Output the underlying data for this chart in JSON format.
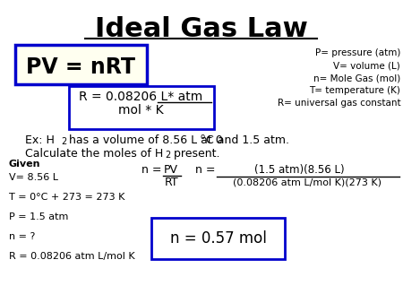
{
  "title": "Ideal Gas Law",
  "bg_color": "#ffffff",
  "pv_eq": "PV = nRT",
  "r_eq_top": "R = 0.08206 L* atm",
  "r_eq_bot": "mol * K",
  "def1": "P= pressure (atm)",
  "def2": "V= volume (L)",
  "def3": "n= Mole Gas (mol)",
  "def4": "T= temperature (K)",
  "def5": "R= universal gas constant",
  "ex1a": "Ex: H",
  "ex1b": " has a volume of 8.56 L at 0",
  "ex1c": "C and 1.5 atm.",
  "ex2a": "Calculate the moles of H",
  "ex2b": " present.",
  "given_label": "Given",
  "given_items": [
    "V= 8.56 L",
    "T = 0°C + 273 = 273 K",
    "P = 1.5 atm",
    "n = ?",
    "R = 0.08206 atm L/mol K"
  ],
  "calc_num": "(1.5 atm)(8.56 L)",
  "calc_denom": "(0.08206 atm L/mol K)(273 K)",
  "answer": "n = 0.57 mol",
  "box_color": "#0000cc",
  "text_color": "#000000"
}
